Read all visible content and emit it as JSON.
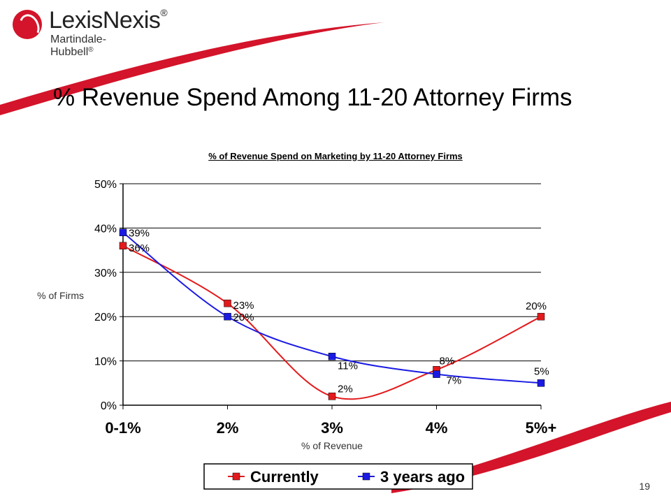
{
  "brand": {
    "name": "LexisNexis",
    "name_mark": "®",
    "division": "Martindale-Hubbell",
    "division_mark": "®",
    "accent_color": "#d3142a"
  },
  "slide": {
    "title": "% Revenue Spend Among 11-20 Attorney Firms",
    "page_number": "19"
  },
  "chart_data": {
    "type": "line",
    "title": "% of Revenue Spend on Marketing by 11-20 Attorney Firms",
    "xlabel": "% of Revenue",
    "ylabel": "% of Firms",
    "categories": [
      "0-1%",
      "2%",
      "3%",
      "4%",
      "5%+"
    ],
    "ylim": [
      0,
      50
    ],
    "yticks": [
      0,
      10,
      20,
      30,
      40,
      50
    ],
    "ytick_labels": [
      "0%",
      "10%",
      "20%",
      "30%",
      "40%",
      "50%"
    ],
    "grid": "horizontal",
    "legend_position": "bottom",
    "series": [
      {
        "name": "Currently",
        "color": "#e31a1c",
        "values": [
          36,
          23,
          2,
          8,
          20
        ],
        "labels": [
          "36%",
          "23%",
          "2%",
          "8%",
          "20%"
        ]
      },
      {
        "name": "3 years ago",
        "color": "#1a1ae3",
        "values": [
          39,
          20,
          11,
          7,
          5
        ],
        "labels": [
          "39%",
          "20%",
          "11%",
          "7%",
          "5%"
        ]
      }
    ]
  }
}
